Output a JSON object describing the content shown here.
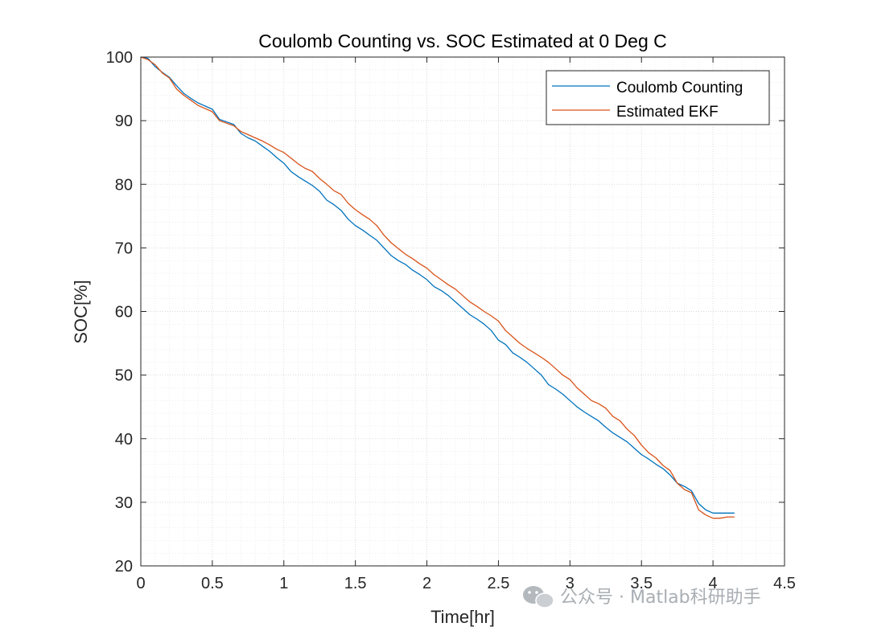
{
  "chart_data": {
    "type": "line",
    "title": "Coulomb Counting vs. SOC Estimated at 0 Deg C",
    "xlabel": "Time[hr]",
    "ylabel": "SOC[%]",
    "xlim": [
      0,
      4.5
    ],
    "ylim": [
      20,
      100
    ],
    "xticks": [
      0,
      0.5,
      1,
      1.5,
      2,
      2.5,
      3,
      3.5,
      4,
      4.5
    ],
    "xtick_labels": [
      "0",
      "0.5",
      "1",
      "1.5",
      "2",
      "2.5",
      "3",
      "3.5",
      "4",
      "4.5"
    ],
    "yticks": [
      20,
      30,
      40,
      50,
      60,
      70,
      80,
      90,
      100
    ],
    "ytick_labels": [
      "20",
      "30",
      "40",
      "50",
      "60",
      "70",
      "80",
      "90",
      "100"
    ],
    "grid": "major and minor",
    "legend_position": "top-right",
    "series": [
      {
        "name": "Coulomb Counting",
        "color": "#0072BD",
        "x": [
          0,
          0.05,
          0.1,
          0.15,
          0.2,
          0.25,
          0.3,
          0.35,
          0.4,
          0.5,
          0.55,
          0.6,
          0.65,
          0.7,
          0.75,
          0.8,
          0.85,
          0.9,
          0.95,
          1.0,
          1.05,
          1.1,
          1.15,
          1.2,
          1.25,
          1.3,
          1.35,
          1.4,
          1.45,
          1.5,
          1.55,
          1.6,
          1.65,
          1.7,
          1.75,
          1.8,
          1.85,
          1.9,
          1.95,
          2.0,
          2.05,
          2.1,
          2.15,
          2.2,
          2.25,
          2.3,
          2.35,
          2.4,
          2.45,
          2.5,
          2.55,
          2.6,
          2.65,
          2.7,
          2.75,
          2.8,
          2.85,
          2.9,
          2.95,
          3.0,
          3.05,
          3.1,
          3.15,
          3.2,
          3.25,
          3.3,
          3.35,
          3.4,
          3.45,
          3.5,
          3.55,
          3.6,
          3.65,
          3.7,
          3.75,
          3.8,
          3.85,
          3.9,
          3.95,
          4.0,
          4.05,
          4.1,
          4.15
        ],
        "y": [
          100,
          99.8,
          98.5,
          97.6,
          96.8,
          95.5,
          94.3,
          93.5,
          92.8,
          91.8,
          90.2,
          89.8,
          89.4,
          88.0,
          87.3,
          86.8,
          86.0,
          85.2,
          84.2,
          83.3,
          82.0,
          81.2,
          80.5,
          79.8,
          78.9,
          77.5,
          76.8,
          75.9,
          74.5,
          73.5,
          72.8,
          72.0,
          71.2,
          70.0,
          68.8,
          68.0,
          67.4,
          66.5,
          65.8,
          65.0,
          63.9,
          63.3,
          62.5,
          61.5,
          60.5,
          59.5,
          58.8,
          58.0,
          57.0,
          55.5,
          54.8,
          53.5,
          52.8,
          52.0,
          51.0,
          50.0,
          48.5,
          47.8,
          47.0,
          46.0,
          45.0,
          44.2,
          43.5,
          42.8,
          41.8,
          40.9,
          40.2,
          39.5,
          38.5,
          37.5,
          36.8,
          36.0,
          35.3,
          34.3,
          33.0,
          32.5,
          31.8,
          29.8,
          28.8,
          28.3,
          28.3,
          28.3,
          28.3
        ]
      },
      {
        "name": "Estimated EKF",
        "color": "#D95319",
        "x": [
          0,
          0.05,
          0.1,
          0.15,
          0.2,
          0.25,
          0.3,
          0.35,
          0.4,
          0.5,
          0.55,
          0.6,
          0.65,
          0.7,
          0.75,
          0.8,
          0.85,
          0.9,
          0.95,
          1.0,
          1.05,
          1.1,
          1.15,
          1.2,
          1.25,
          1.3,
          1.35,
          1.4,
          1.45,
          1.5,
          1.55,
          1.6,
          1.65,
          1.7,
          1.75,
          1.8,
          1.85,
          1.9,
          1.95,
          2.0,
          2.05,
          2.1,
          2.15,
          2.2,
          2.25,
          2.3,
          2.35,
          2.4,
          2.45,
          2.5,
          2.55,
          2.6,
          2.65,
          2.7,
          2.75,
          2.8,
          2.85,
          2.9,
          2.95,
          3.0,
          3.05,
          3.1,
          3.15,
          3.2,
          3.25,
          3.3,
          3.35,
          3.4,
          3.45,
          3.5,
          3.55,
          3.6,
          3.65,
          3.7,
          3.75,
          3.8,
          3.85,
          3.9,
          3.95,
          4.0,
          4.05,
          4.1,
          4.15
        ],
        "y": [
          100,
          99.6,
          98.8,
          97.5,
          96.7,
          95.0,
          94.0,
          93.2,
          92.4,
          91.4,
          90.0,
          89.6,
          89.2,
          88.3,
          87.8,
          87.3,
          86.8,
          86.2,
          85.5,
          85.0,
          84.1,
          83.2,
          82.5,
          82.0,
          80.9,
          80.0,
          79.0,
          78.4,
          77.0,
          76.0,
          75.2,
          74.5,
          73.5,
          72.0,
          70.8,
          69.9,
          69.0,
          68.3,
          67.5,
          66.8,
          65.8,
          65.0,
          64.2,
          63.5,
          62.5,
          61.5,
          60.8,
          60.0,
          59.3,
          58.5,
          57.0,
          56.0,
          55.0,
          54.2,
          53.5,
          52.8,
          52.0,
          51.0,
          50.0,
          49.3,
          48.0,
          47.0,
          46.0,
          45.5,
          44.8,
          43.5,
          42.8,
          41.5,
          40.5,
          39.0,
          37.8,
          37.0,
          35.8,
          35.0,
          33.0,
          32.0,
          31.5,
          28.8,
          28.0,
          27.5,
          27.5,
          27.7,
          27.7
        ]
      }
    ]
  },
  "watermark": {
    "text": "公众号 · Matlab科研助手",
    "icon": "wechat-icon"
  }
}
